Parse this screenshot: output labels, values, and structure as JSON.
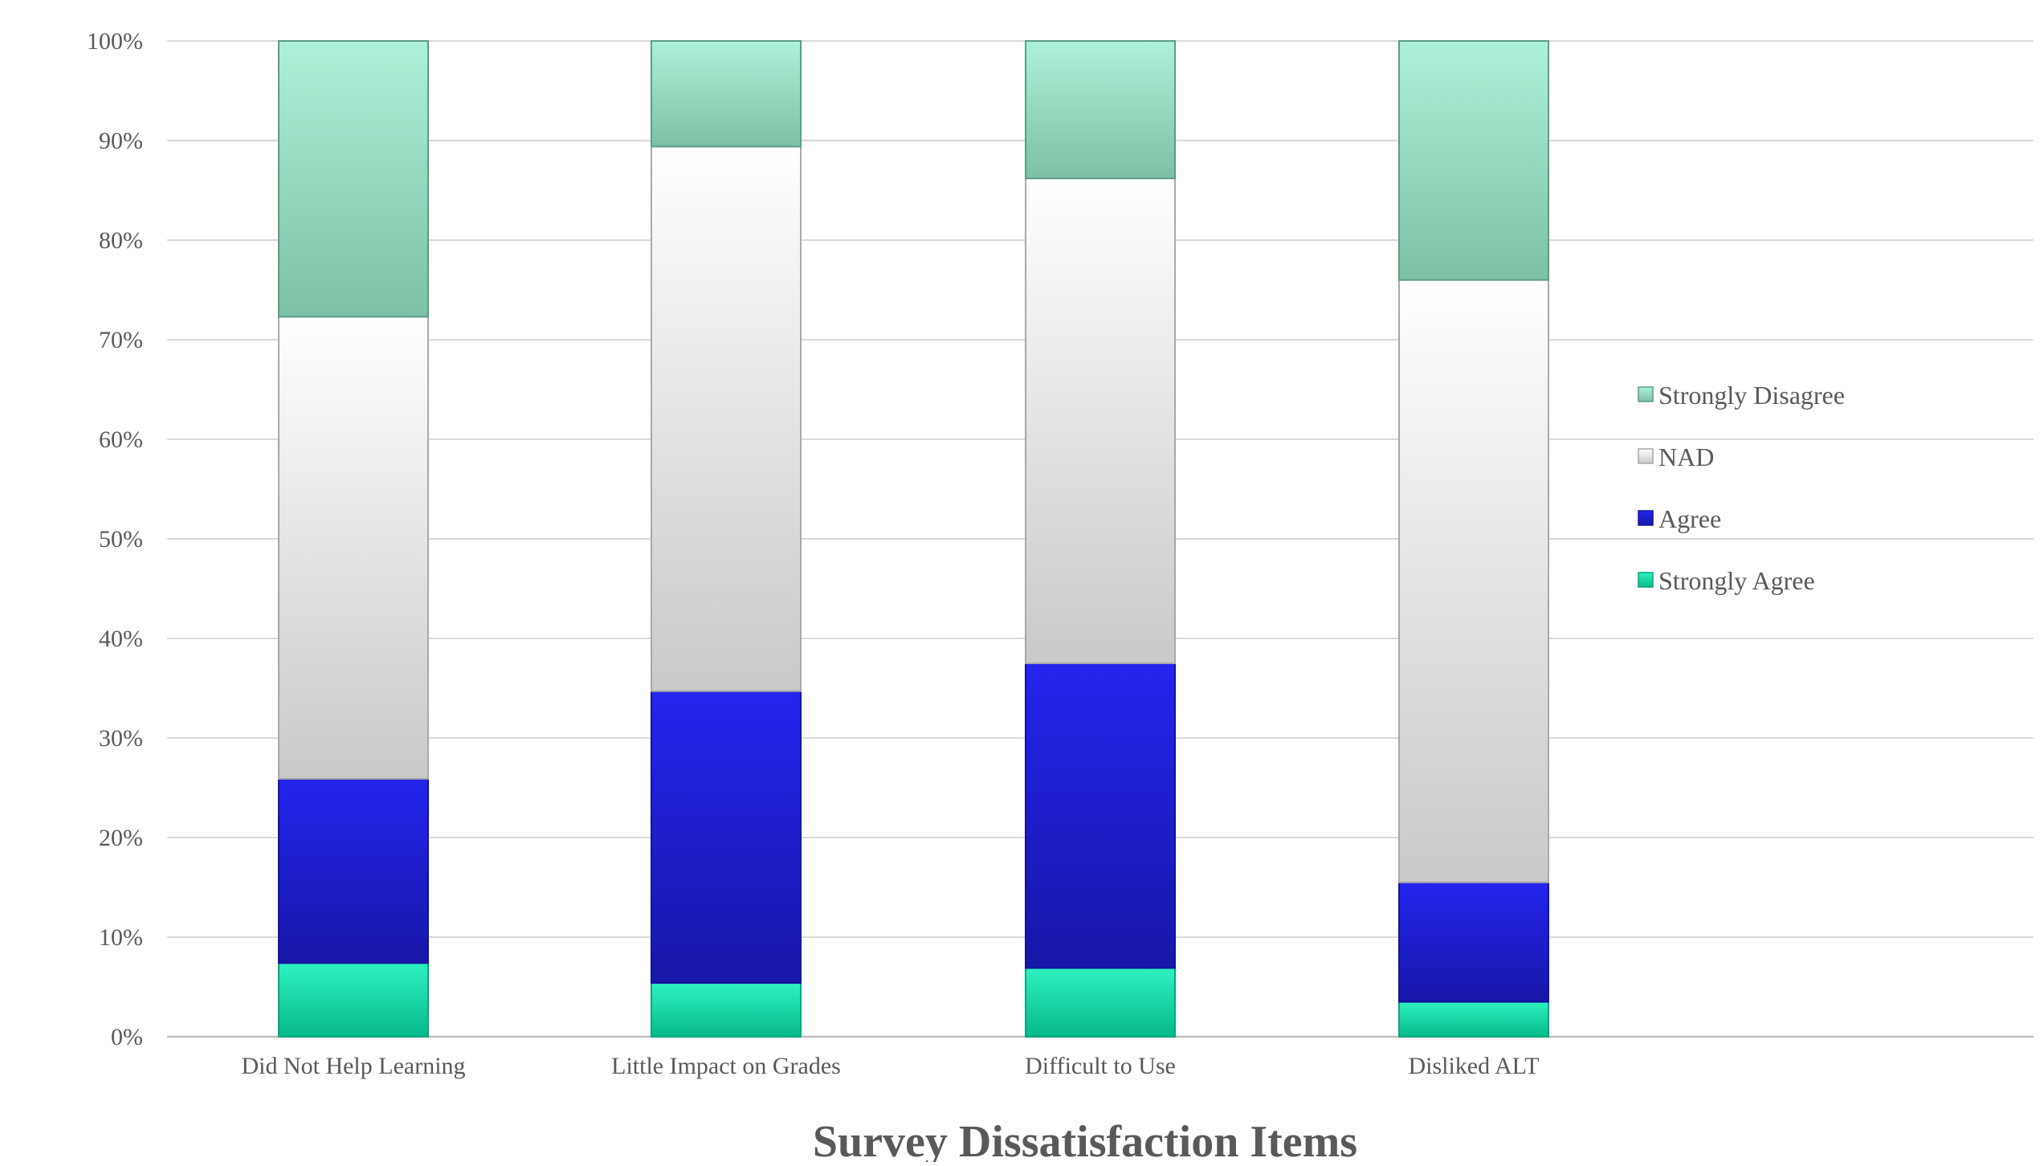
{
  "chart_data": {
    "type": "bar",
    "stacked": true,
    "percent_stacked": true,
    "title": "",
    "xlabel": "Survey Dissatisfaction Items",
    "ylabel": "",
    "ylim": [
      0,
      100
    ],
    "y_ticks": [
      "0%",
      "10%",
      "20%",
      "30%",
      "40%",
      "50%",
      "60%",
      "70%",
      "80%",
      "90%",
      "100%"
    ],
    "grid": true,
    "legend_position": "right",
    "categories": [
      "Did Not Help Learning",
      "Little Impact on Grades",
      "Difficult to Use",
      "Disliked ALT"
    ],
    "series": [
      {
        "name": "Strongly Agree",
        "color": "#10dca8",
        "values": [
          7.4,
          5.4,
          6.9,
          3.5
        ]
      },
      {
        "name": "Agree",
        "color": "#1f1fd6",
        "values": [
          18.5,
          29.3,
          30.6,
          12.0
        ]
      },
      {
        "name": "NAD",
        "color": "#d9d9d9",
        "values": [
          46.4,
          54.7,
          48.7,
          60.5
        ]
      },
      {
        "name": "Strongly Disagree",
        "color": "#8fd9bd",
        "values": [
          27.7,
          10.6,
          13.8,
          24.0
        ]
      }
    ],
    "legend_order": [
      "Strongly Disagree",
      "NAD",
      "Agree",
      "Strongly Agree"
    ]
  }
}
